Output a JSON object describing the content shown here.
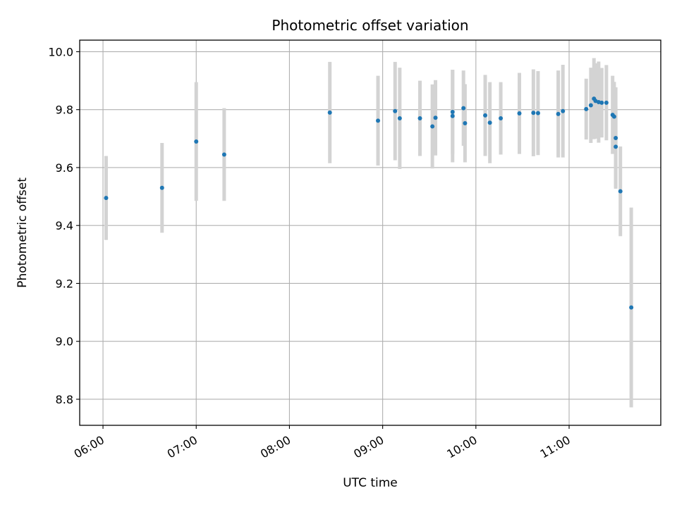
{
  "chart_data": {
    "type": "scatter",
    "title": "Photometric offset variation",
    "xlabel": "UTC time",
    "ylabel": "Photometric offset",
    "xlim": [
      "05:45",
      "11:59"
    ],
    "ylim": [
      8.71,
      10.04
    ],
    "x_ticks": [
      "06:00",
      "07:00",
      "08:00",
      "09:00",
      "10:00",
      "11:00"
    ],
    "y_ticks": [
      "8.8",
      "9.0",
      "9.2",
      "9.4",
      "9.6",
      "9.8",
      "10.0"
    ],
    "grid": true,
    "colors": {
      "point": "#1f77b4",
      "errorbar": "#d3d3d3",
      "grid": "#b0b0b0"
    },
    "points": [
      {
        "x": "06:02",
        "y": 9.495,
        "err": 0.145
      },
      {
        "x": "06:38",
        "y": 9.53,
        "err": 0.155
      },
      {
        "x": "07:00",
        "y": 9.69,
        "err": 0.205
      },
      {
        "x": "07:18",
        "y": 9.645,
        "err": 0.16
      },
      {
        "x": "08:26",
        "y": 9.79,
        "err": 0.175
      },
      {
        "x": "08:57",
        "y": 9.762,
        "err": 0.155
      },
      {
        "x": "09:08",
        "y": 9.795,
        "err": 0.17
      },
      {
        "x": "09:11",
        "y": 9.77,
        "err": 0.175
      },
      {
        "x": "09:24",
        "y": 9.77,
        "err": 0.13
      },
      {
        "x": "09:32",
        "y": 9.742,
        "err": 0.145
      },
      {
        "x": "09:34",
        "y": 9.772,
        "err": 0.13
      },
      {
        "x": "09:45",
        "y": 9.778,
        "err": 0.16
      },
      {
        "x": "09:45",
        "y": 9.792,
        "err": 0.145
      },
      {
        "x": "09:52",
        "y": 9.805,
        "err": 0.13
      },
      {
        "x": "09:53",
        "y": 9.753,
        "err": 0.135
      },
      {
        "x": "10:06",
        "y": 9.78,
        "err": 0.14
      },
      {
        "x": "10:09",
        "y": 9.755,
        "err": 0.14
      },
      {
        "x": "10:16",
        "y": 9.77,
        "err": 0.125
      },
      {
        "x": "10:28",
        "y": 9.787,
        "err": 0.14
      },
      {
        "x": "10:37",
        "y": 9.789,
        "err": 0.15
      },
      {
        "x": "10:40",
        "y": 9.788,
        "err": 0.145
      },
      {
        "x": "10:53",
        "y": 9.785,
        "err": 0.15
      },
      {
        "x": "10:56",
        "y": 9.795,
        "err": 0.16
      },
      {
        "x": "11:11",
        "y": 9.802,
        "err": 0.105
      },
      {
        "x": "11:14",
        "y": 9.815,
        "err": 0.13
      },
      {
        "x": "11:16",
        "y": 9.838,
        "err": 0.14
      },
      {
        "x": "11:17",
        "y": 9.83,
        "err": 0.13
      },
      {
        "x": "11:19",
        "y": 9.826,
        "err": 0.14
      },
      {
        "x": "11:21",
        "y": 9.824,
        "err": 0.12
      },
      {
        "x": "11:24",
        "y": 9.824,
        "err": 0.13
      },
      {
        "x": "11:28",
        "y": 9.782,
        "err": 0.135
      },
      {
        "x": "11:29",
        "y": 9.776,
        "err": 0.12
      },
      {
        "x": "11:30",
        "y": 9.702,
        "err": 0.175
      },
      {
        "x": "11:30",
        "y": 9.672,
        "err": 0.14
      },
      {
        "x": "11:33",
        "y": 9.518,
        "err": 0.155
      },
      {
        "x": "11:40",
        "y": 9.117,
        "err": 0.345
      }
    ]
  }
}
